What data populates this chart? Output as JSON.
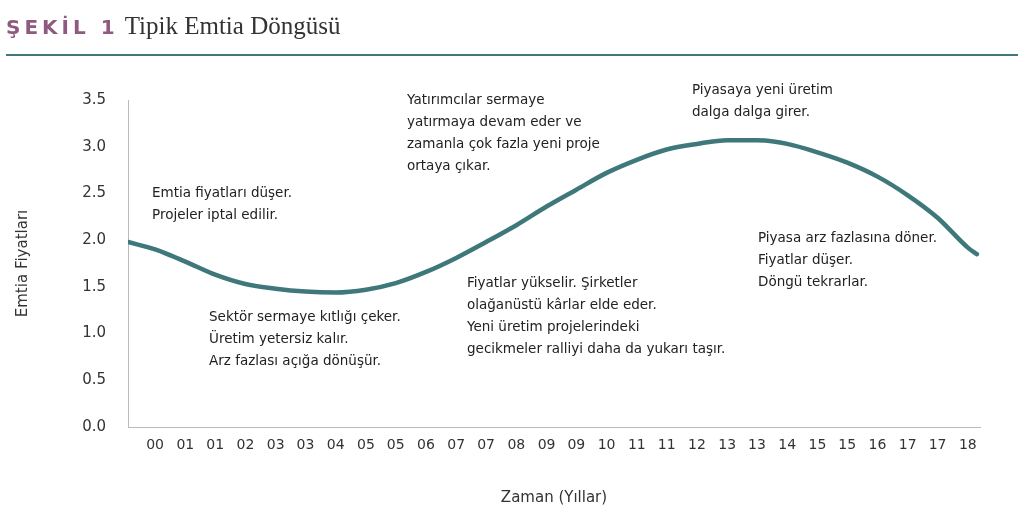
{
  "chart_data": {
    "type": "line",
    "title": "ŞEKİL 1",
    "subtitle": "Tipik Emtia Döngüsü",
    "xlabel": "Zaman (Yıllar)",
    "ylabel": "Emtia Fiyatları",
    "x": [
      -0.6,
      0,
      0.67,
      1.33,
      2,
      2.67,
      3.33,
      4,
      4.67,
      5.33,
      6,
      6.67,
      7.33,
      8,
      8.67,
      9.33,
      10,
      10.67,
      11.33,
      12,
      12.67,
      13.33,
      14,
      14.67,
      15.33,
      16,
      16.67,
      17.33,
      18,
      18.2
    ],
    "series": [
      {
        "color": "#3f787b",
        "values": [
          1.98,
          1.9,
          1.77,
          1.63,
          1.53,
          1.48,
          1.45,
          1.44,
          1.47,
          1.54,
          1.66,
          1.81,
          1.98,
          2.16,
          2.36,
          2.54,
          2.72,
          2.86,
          2.97,
          3.03,
          3.07,
          3.07,
          3.03,
          2.94,
          2.83,
          2.68,
          2.48,
          2.24,
          1.92,
          1.85
        ]
      }
    ],
    "xlim": [
      -0.6,
      18.27
    ],
    "xticks": [
      {
        "value": 0,
        "label": "00"
      },
      {
        "value": 0.67,
        "label": "01"
      },
      {
        "value": 1.33,
        "label": "01"
      },
      {
        "value": 2,
        "label": "02"
      },
      {
        "value": 2.67,
        "label": "03"
      },
      {
        "value": 3.33,
        "label": "03"
      },
      {
        "value": 4,
        "label": "04"
      },
      {
        "value": 4.67,
        "label": "05"
      },
      {
        "value": 5.33,
        "label": "05"
      },
      {
        "value": 6,
        "label": "06"
      },
      {
        "value": 6.67,
        "label": "07"
      },
      {
        "value": 7.33,
        "label": "07"
      },
      {
        "value": 8,
        "label": "08"
      },
      {
        "value": 8.67,
        "label": "09"
      },
      {
        "value": 9.33,
        "label": "09"
      },
      {
        "value": 10,
        "label": "10"
      },
      {
        "value": 10.67,
        "label": "11"
      },
      {
        "value": 11.33,
        "label": "11"
      },
      {
        "value": 12,
        "label": "12"
      },
      {
        "value": 12.67,
        "label": "13"
      },
      {
        "value": 13.33,
        "label": "13"
      },
      {
        "value": 14,
        "label": "14"
      },
      {
        "value": 14.67,
        "label": "15"
      },
      {
        "value": 15.33,
        "label": "15"
      },
      {
        "value": 16,
        "label": "16"
      },
      {
        "value": 16.67,
        "label": "17"
      },
      {
        "value": 17.33,
        "label": "17"
      },
      {
        "value": 18,
        "label": "18"
      }
    ],
    "ylim": [
      0,
      3.5
    ],
    "yticks": [
      {
        "value": 0,
        "label": "0.0"
      },
      {
        "value": 0.5,
        "label": "0.5"
      },
      {
        "value": 1,
        "label": "1.0"
      },
      {
        "value": 1.5,
        "label": "1.5"
      },
      {
        "value": 2,
        "label": "2.0"
      },
      {
        "value": 2.5,
        "label": "2.5"
      },
      {
        "value": 3,
        "label": "3.0"
      },
      {
        "value": 3.5,
        "label": "3.5"
      }
    ],
    "grid": false,
    "legend": false,
    "marker": "none",
    "line_style": "solid",
    "annotations": [
      "Emtia fiyatları düşer.\nProjeler iptal edilir.",
      "Sektör sermaye kıtlığı çeker.\nÜretim yetersiz kalır.\nArz fazlası açığa dönüşür.",
      "Yatırımcılar sermaye\nyatırmaya devam eder ve\nzamanla çok fazla yeni proje\nortaya çıkar.",
      "Fiyatlar yükselir. Şirketler\nolağanüstü kârlar elde eder.\nYeni üretim projelerindeki\ngecikmeler ralliyi daha da yukarı taşır.",
      "Piyasaya yeni üretim\ndalga dalga girer.",
      "Piyasa arz fazlasına döner.\nFiyatlar düşer.\nDöngü tekrarlar."
    ]
  }
}
